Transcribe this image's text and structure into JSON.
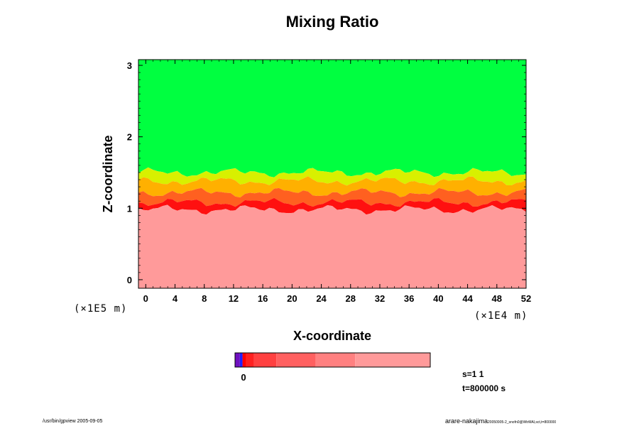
{
  "chart_data": {
    "type": "heatmap",
    "title": "Mixing Ratio",
    "xlabel": "X-coordinate",
    "ylabel": "Z-coordinate",
    "x_scale_label": "(×1E4 m)",
    "y_scale_label": "(×1E5 m)",
    "x_ticks": [
      0,
      4,
      8,
      12,
      16,
      20,
      24,
      28,
      32,
      36,
      40,
      44,
      48,
      52
    ],
    "y_ticks": [
      0,
      1,
      2,
      3
    ],
    "xlim": [
      -1,
      52
    ],
    "ylim": [
      -0.12,
      3.08
    ],
    "layers": [
      {
        "name": "upper",
        "color": "#00ff40",
        "z_bottom": 1.5,
        "z_top": 3.08
      },
      {
        "name": "yellow-band",
        "color": "#d8f000",
        "z_bottom": 1.38,
        "z_top": 1.5
      },
      {
        "name": "orange-band",
        "color": "#ffb000",
        "z_bottom": 1.22,
        "z_top": 1.38
      },
      {
        "name": "orange-red-band",
        "color": "#ff6020",
        "z_bottom": 1.08,
        "z_top": 1.22
      },
      {
        "name": "red-band",
        "color": "#ff1010",
        "z_bottom": 0.98,
        "z_top": 1.08
      },
      {
        "name": "lower",
        "color": "#ff9a9a",
        "z_bottom": -0.12,
        "z_top": 0.98
      }
    ],
    "colorbar": {
      "colors": [
        "#7010c0",
        "#2020ff",
        "#ff0000",
        "#ff2020",
        "#ff4040",
        "#ff6060",
        "#ff8080",
        "#ff9a9a"
      ],
      "widths": [
        1.3,
        0.7,
        1.0,
        2.0,
        6.0,
        10.5,
        10.5,
        20.0
      ],
      "tick_label": "0"
    },
    "info_lines": [
      "s=1 1",
      "t=800000 s"
    ]
  },
  "footer": {
    "left": "/usr/bin/gpview 2005-09-05",
    "right": "arare-nakajima",
    "right_small": "20050905-2_snofn0@WtrMAl,sct,t=800000"
  },
  "colors": {
    "upper": "#00ff40",
    "lower": "#ff9a9a",
    "red": "#ff1010"
  }
}
